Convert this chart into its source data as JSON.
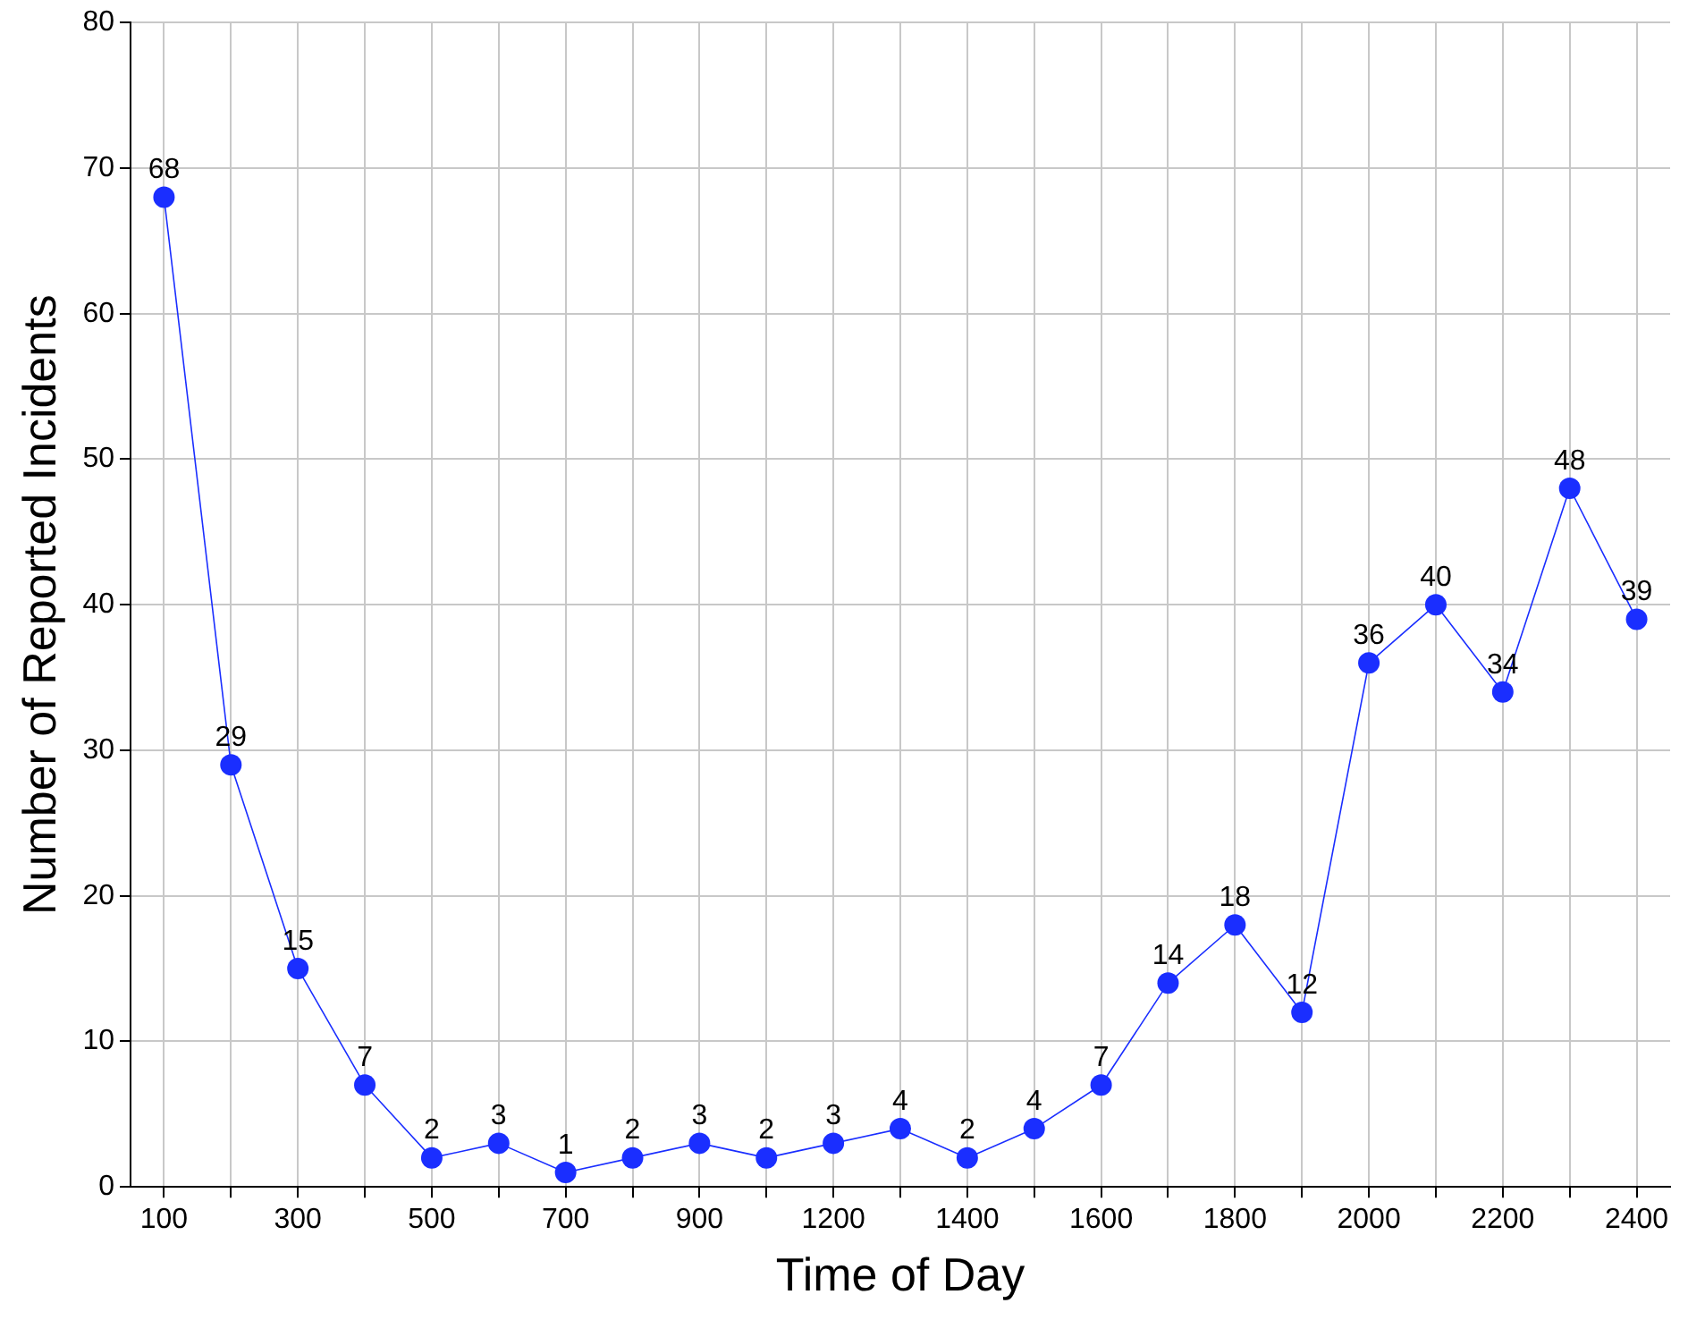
{
  "chart_data": {
    "type": "line",
    "xlabel": "Time of Day",
    "ylabel": "Number of Reported Incidents",
    "categories": [
      "100",
      null,
      "300",
      null,
      "500",
      null,
      "700",
      null,
      "900",
      null,
      "1200",
      null,
      "1400",
      null,
      "1600",
      null,
      "1800",
      null,
      "2000",
      null,
      "2200",
      null,
      "2400"
    ],
    "series": [
      {
        "color": "#1a2eff",
        "values": [
          68,
          29,
          15,
          7,
          2,
          3,
          1,
          2,
          3,
          2,
          3,
          4,
          2,
          4,
          7,
          14,
          18,
          12,
          36,
          40,
          34,
          48,
          39
        ]
      }
    ],
    "ylim": [
      0,
      80
    ],
    "yticks": [
      0,
      10,
      20,
      30,
      40,
      50,
      60,
      70,
      80
    ],
    "grid": true,
    "legend": false,
    "marker": "circle",
    "line_style": "solid",
    "data_labels": true
  }
}
